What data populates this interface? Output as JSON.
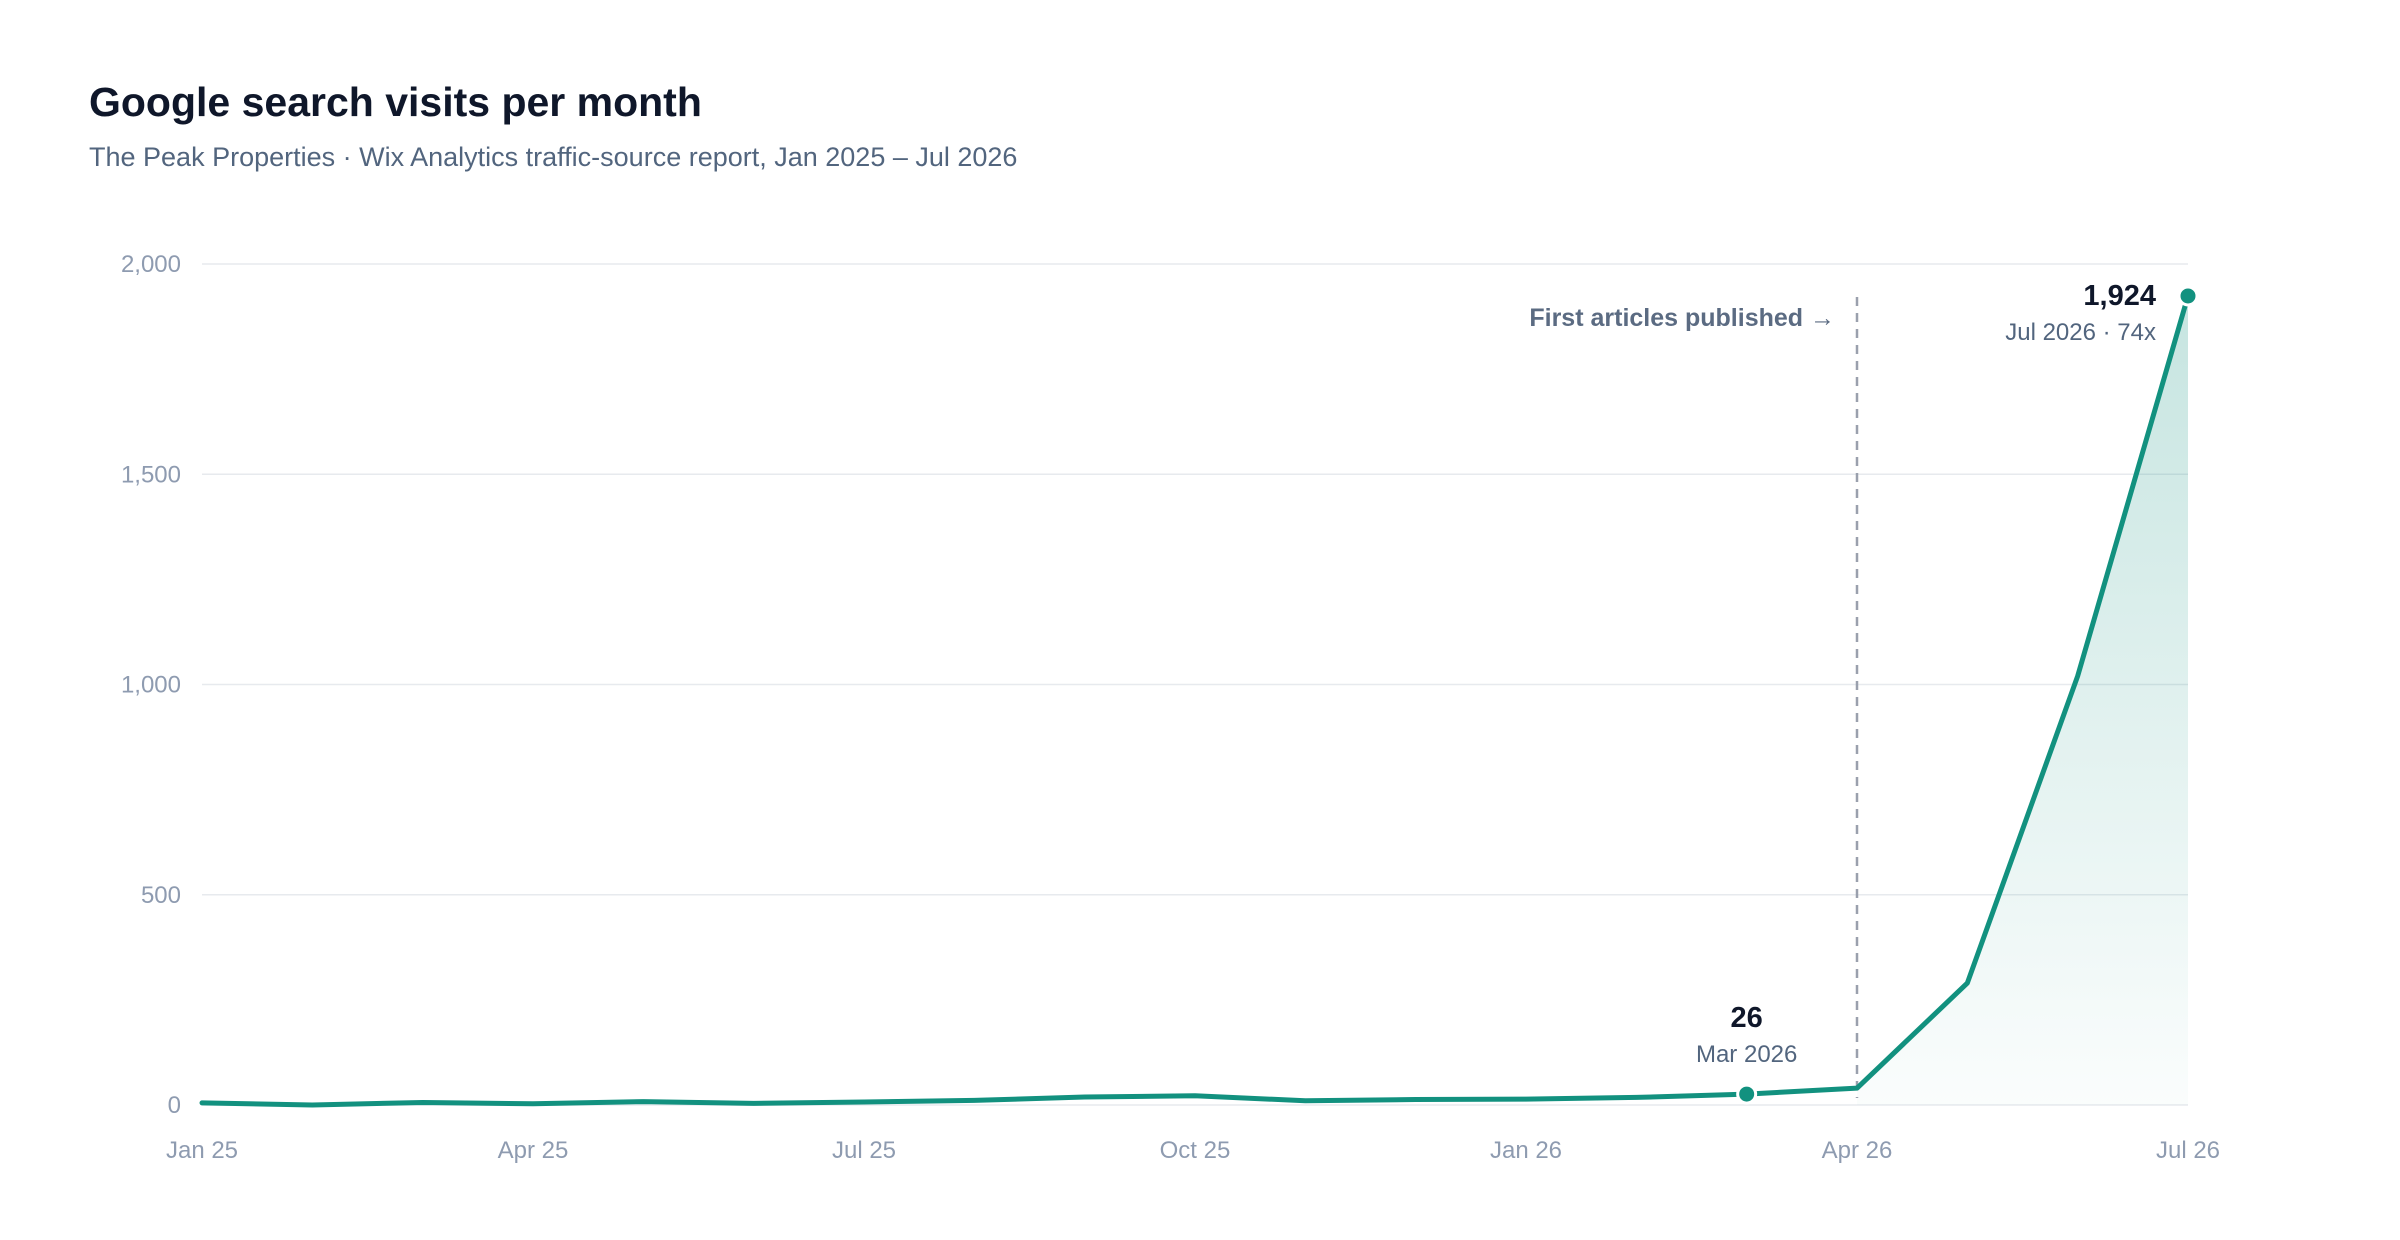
{
  "header": {
    "title": "Google search visits per month",
    "subtitle": "The Peak Properties · Wix Analytics traffic-source report, Jan 2025 – Jul 2026"
  },
  "colors": {
    "line": "#12917f",
    "area": "#12917f",
    "marker_line": "#9aa0ad",
    "grid": "#e7eaee"
  },
  "chart_data": {
    "type": "line",
    "title": "Google search visits per month",
    "subtitle": "The Peak Properties · Wix Analytics traffic-source report, Jan 2025 – Jul 2026",
    "xlabel": "",
    "ylabel": "",
    "ylim": [
      0,
      2000
    ],
    "yticks": [
      0,
      500,
      1000,
      1500,
      2000
    ],
    "ytick_labels": [
      "0",
      "500",
      "1,000",
      "1,500",
      "2,000"
    ],
    "grid": true,
    "area_fill": true,
    "x": [
      "Jan 2025",
      "Feb 2025",
      "Mar 2025",
      "Apr 2025",
      "May 2025",
      "Jun 2025",
      "Jul 2025",
      "Aug 2025",
      "Sep 2025",
      "Oct 2025",
      "Nov 2025",
      "Dec 2025",
      "Jan 2026",
      "Feb 2026",
      "Mar 2026",
      "Apr 2026",
      "May 2026",
      "Jun 2026",
      "Jul 2026"
    ],
    "xtick_labels": [
      {
        "index": 0,
        "label": "Jan 25"
      },
      {
        "index": 3,
        "label": "Apr 25"
      },
      {
        "index": 6,
        "label": "Jul 25"
      },
      {
        "index": 9,
        "label": "Oct 25"
      },
      {
        "index": 12,
        "label": "Jan 26"
      },
      {
        "index": 15,
        "label": "Apr 26"
      },
      {
        "index": 18,
        "label": "Jul 26"
      }
    ],
    "series": [
      {
        "values": [
          5,
          0,
          6,
          3,
          8,
          4,
          7,
          11,
          19,
          22,
          10,
          13,
          14,
          18,
          26,
          40,
          290,
          1020,
          1924
        ]
      }
    ],
    "annotations": [
      {
        "type": "vline",
        "x_index": 15,
        "label": "First articles published →"
      },
      {
        "type": "point",
        "x_index": 14,
        "value_label": "26",
        "sub_label": "Mar 2026"
      },
      {
        "type": "point",
        "x_index": 18,
        "value_label": "1,924",
        "sub_label": "Jul 2026 · 74x"
      }
    ]
  }
}
